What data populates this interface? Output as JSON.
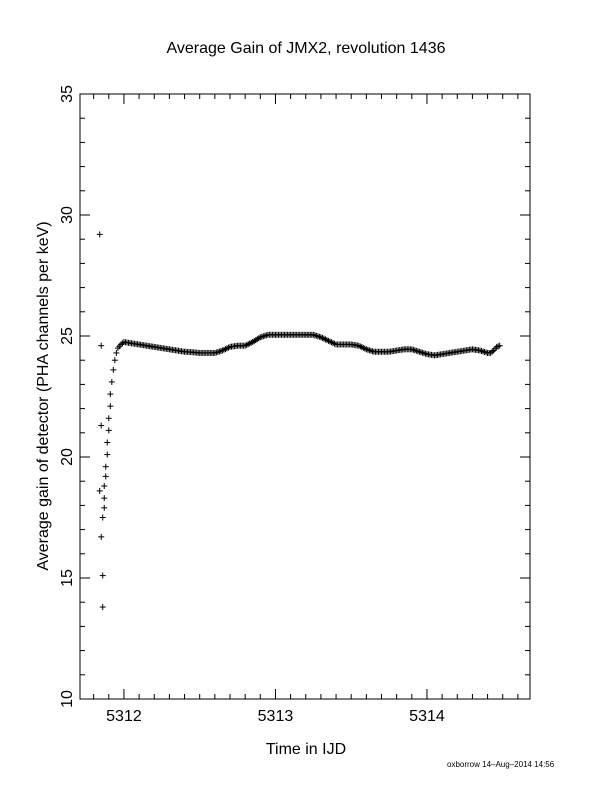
{
  "chart_data": {
    "type": "scatter",
    "title": "Average Gain of JMX2, revolution 1436",
    "xlabel": "Time in IJD",
    "ylabel": "Average gain of detector (PHA channels per keV)",
    "xlim": [
      5311.71,
      5314.68
    ],
    "ylim": [
      10,
      35
    ],
    "xticks": [
      5312,
      5313,
      5314
    ],
    "yticks": [
      10,
      15,
      20,
      25,
      30,
      35
    ],
    "marker": "+",
    "grid": false,
    "series": [
      {
        "points_x": [
          5311.84,
          5311.85,
          5311.85,
          5311.84,
          5311.85,
          5311.86,
          5311.86,
          5311.86,
          5311.87,
          5311.87,
          5311.87,
          5311.88,
          5311.88,
          5311.89,
          5311.89,
          5311.9,
          5311.9,
          5311.91,
          5311.91,
          5311.92,
          5311.93,
          5311.94,
          5311.95,
          5311.96,
          5311.98,
          5312.0,
          5312.05,
          5312.1,
          5312.15,
          5312.2,
          5312.25,
          5312.3,
          5312.35,
          5312.4,
          5312.45,
          5312.5,
          5312.55,
          5312.6,
          5312.65,
          5312.7,
          5312.75,
          5312.8,
          5312.85,
          5312.9,
          5312.95,
          5313.0,
          5313.05,
          5313.1,
          5313.15,
          5313.2,
          5313.25,
          5313.3,
          5313.35,
          5313.4,
          5313.45,
          5313.5,
          5313.55,
          5313.6,
          5313.65,
          5313.7,
          5313.75,
          5313.8,
          5313.85,
          5313.9,
          5313.95,
          5314.0,
          5314.05,
          5314.1,
          5314.15,
          5314.2,
          5314.25,
          5314.3,
          5314.35,
          5314.4,
          5314.42,
          5314.44,
          5314.46,
          5314.48
        ],
        "points_y": [
          29.2,
          24.6,
          21.3,
          18.6,
          16.7,
          15.1,
          13.8,
          17.5,
          17.9,
          18.3,
          18.8,
          19.2,
          19.6,
          20.1,
          20.6,
          21.1,
          21.6,
          22.1,
          22.6,
          23.1,
          23.6,
          24.0,
          24.3,
          24.5,
          24.65,
          24.75,
          24.7,
          24.65,
          24.6,
          24.55,
          24.5,
          24.45,
          24.4,
          24.35,
          24.33,
          24.3,
          24.3,
          24.3,
          24.4,
          24.55,
          24.6,
          24.6,
          24.75,
          24.95,
          25.05,
          25.05,
          25.05,
          25.05,
          25.05,
          25.05,
          25.05,
          24.95,
          24.8,
          24.65,
          24.65,
          24.65,
          24.6,
          24.45,
          24.35,
          24.35,
          24.35,
          24.4,
          24.45,
          24.45,
          24.35,
          24.25,
          24.2,
          24.25,
          24.3,
          24.35,
          24.4,
          24.45,
          24.4,
          24.3,
          24.3,
          24.4,
          24.55,
          24.6
        ]
      }
    ]
  },
  "footer": {
    "credit": "oxborrow 14–Aug–2014 14:56"
  }
}
